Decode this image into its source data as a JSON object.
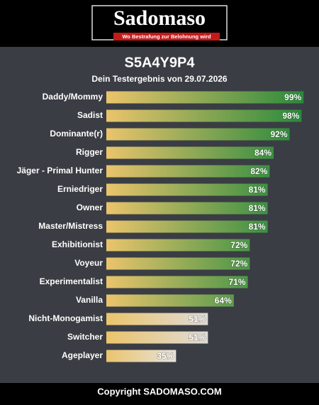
{
  "header": {
    "logo": "Sadomaso",
    "tagline": "Wo Bestrafung zur Belohnung wird"
  },
  "chart_data": {
    "type": "bar",
    "orientation": "horizontal",
    "title": "S5A4Y9P4",
    "subtitle": "Dein Testergebnis von 29.07.2026",
    "categories": [
      "Daddy/Mommy",
      "Sadist",
      "Dominante(r)",
      "Rigger",
      "Jäger - Primal Hunter",
      "Erniedriger",
      "Owner",
      "Master/Mistress",
      "Exhibitionist",
      "Voyeur",
      "Experimentalist",
      "Vanilla",
      "Nicht-Monogamist",
      "Switcher",
      "Ageplayer"
    ],
    "values": [
      99,
      98,
      92,
      84,
      82,
      81,
      81,
      81,
      72,
      72,
      71,
      64,
      51,
      51,
      35
    ],
    "value_labels": [
      "99%",
      "98%",
      "92%",
      "84%",
      "82%",
      "81%",
      "81%",
      "81%",
      "72%",
      "72%",
      "71%",
      "64%",
      "51%",
      "51%",
      "35%"
    ],
    "start_color": "#ebc46c",
    "colors": [
      "#2a8a3c",
      "#2a8a3c",
      "#2f8c3e",
      "#3a9042",
      "#3a9042",
      "#3c9143",
      "#3c9143",
      "#3c9143",
      "#4a9647",
      "#4a9647",
      "#4c9748",
      "#5b9c4c",
      "#dedbd6",
      "#dedbd6",
      "#e6e2dc"
    ],
    "xlim": [
      0,
      100
    ]
  },
  "footer": {
    "copyright": "Copyright SADOMASO.COM"
  }
}
